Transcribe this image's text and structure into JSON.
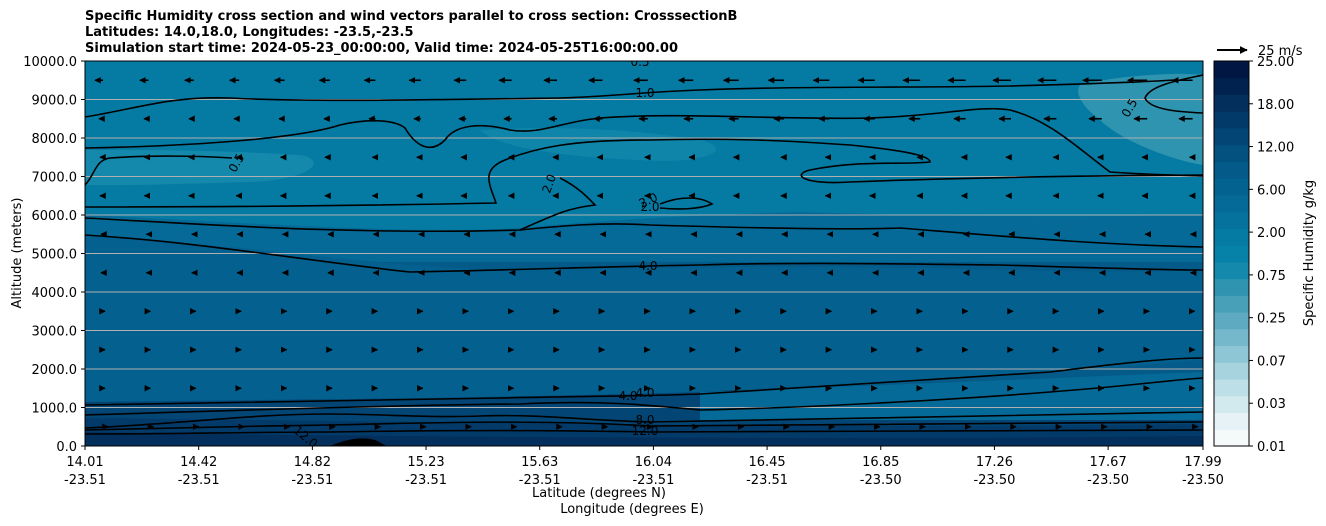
{
  "chart_data": {
    "type": "contour",
    "title_lines": [
      "Specific Humidity cross section and wind vectors parallel to cross section: CrosssectionB",
      "Latitudes: 14.0,18.0, Longitudes: -23.5,-23.5",
      "Simulation start time: 2024-05-23_00:00:00, Valid time: 2024-05-25T16:00:00.00"
    ],
    "ylabel": "Altitude (meters)",
    "xlabel_lat": "Latitude (degrees N)",
    "xlabel_lon": "Longitude (degrees E)",
    "ylim": [
      0,
      10000
    ],
    "y_ticks": [
      "0.0",
      "1000.0",
      "2000.0",
      "3000.0",
      "4000.0",
      "5000.0",
      "6000.0",
      "7000.0",
      "8000.0",
      "9000.0",
      "10000.0"
    ],
    "x_ticks": [
      {
        "lat": "14.01",
        "lon": "-23.51"
      },
      {
        "lat": "14.42",
        "lon": "-23.51"
      },
      {
        "lat": "14.82",
        "lon": "-23.51"
      },
      {
        "lat": "15.23",
        "lon": "-23.51"
      },
      {
        "lat": "15.63",
        "lon": "-23.51"
      },
      {
        "lat": "16.04",
        "lon": "-23.51"
      },
      {
        "lat": "16.45",
        "lon": "-23.51"
      },
      {
        "lat": "16.85",
        "lon": "-23.50"
      },
      {
        "lat": "17.26",
        "lon": "-23.50"
      },
      {
        "lat": "17.67",
        "lon": "-23.50"
      },
      {
        "lat": "17.99",
        "lon": "-23.50"
      }
    ],
    "colorbar": {
      "label": "Specific Humidity g/kg",
      "tick_labels": [
        "25.00",
        "18.00",
        "12.00",
        "6.00",
        "2.00",
        "0.75",
        "0.25",
        "0.07",
        "0.03",
        "0.01"
      ],
      "colors": [
        "#f4f9fa",
        "#e6f2f5",
        "#d2e9ee",
        "#bddfe7",
        "#a6d3de",
        "#8ec6d5",
        "#76b8cb",
        "#5eabc1",
        "#47a0b8",
        "#2e94b0",
        "#1489ab",
        "#0681a8",
        "#057aa3",
        "#05729d",
        "#056a97",
        "#046290",
        "#045a88",
        "#03517f",
        "#034675",
        "#023b69",
        "#022f5c",
        "#01224f",
        "#011643"
      ]
    },
    "quiver_key": {
      "label": "25 m/s",
      "speed": 25
    },
    "contours": [
      {
        "level": "0.5",
        "altitude_m": [
          9000,
          7000,
          6200
        ]
      },
      {
        "level": "1.0",
        "altitude_m": [
          9400,
          7700
        ]
      },
      {
        "level": "2.0",
        "altitude_m": [
          6200,
          5200
        ]
      },
      {
        "level": "4.0",
        "altitude_m": [
          4700,
          1000,
          700
        ]
      },
      {
        "level": "8.0",
        "altitude_m": [
          500
        ]
      },
      {
        "level": "12.0",
        "altitude_m": [
          300
        ]
      }
    ],
    "contour_labels": [
      "0.5",
      "0.5",
      "1.0",
      "2.0",
      "2.0",
      "2.0",
      "0.5",
      "4.0",
      "4.0",
      "4.0",
      "8.0",
      "12.0",
      "12.0"
    ],
    "wind_direction": "southward (toward 14.0N) aloft, northward near surface"
  }
}
